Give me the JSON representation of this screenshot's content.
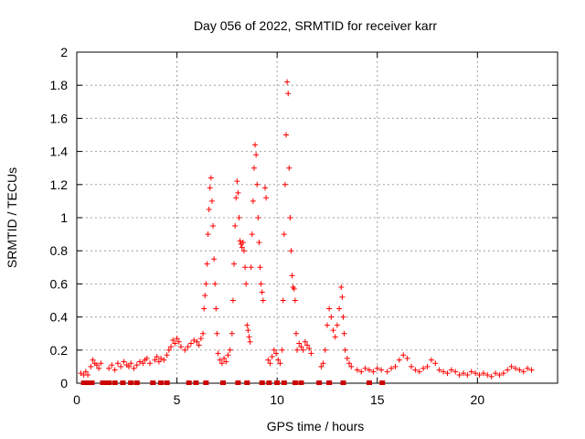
{
  "chart_data": {
    "type": "scatter",
    "title": "Day 056 of 2022, SRMTID for receiver karr",
    "xlabel": "GPS time / hours",
    "ylabel": "SRMTID / TECUs",
    "xlim": [
      0,
      24
    ],
    "ylim": [
      0,
      2
    ],
    "xticks": [
      0,
      5,
      10,
      15,
      20
    ],
    "yticks": [
      0,
      0.2,
      0.4,
      0.6,
      0.8,
      1,
      1.2,
      1.4,
      1.6,
      1.8,
      2
    ],
    "grid": true,
    "colors": {
      "points": "#ff0000",
      "zero_markers": "#cc0000",
      "grid": "#a0a0a0"
    },
    "series": [
      {
        "marker": "plus",
        "points": [
          [
            0.2,
            0.06
          ],
          [
            0.35,
            0.05
          ],
          [
            0.45,
            0.07
          ],
          [
            0.55,
            0.05
          ],
          [
            0.7,
            0.1
          ],
          [
            0.8,
            0.14
          ],
          [
            0.9,
            0.12
          ],
          [
            1.0,
            0.11
          ],
          [
            1.1,
            0.09
          ],
          [
            1.2,
            0.12
          ],
          [
            1.6,
            0.09
          ],
          [
            1.75,
            0.11
          ],
          [
            1.9,
            0.08
          ],
          [
            2.05,
            0.12
          ],
          [
            2.2,
            0.1
          ],
          [
            2.35,
            0.13
          ],
          [
            2.5,
            0.11
          ],
          [
            2.6,
            0.1
          ],
          [
            2.7,
            0.12
          ],
          [
            2.85,
            0.09
          ],
          [
            3.0,
            0.11
          ],
          [
            3.15,
            0.13
          ],
          [
            3.3,
            0.12
          ],
          [
            3.4,
            0.14
          ],
          [
            3.5,
            0.15
          ],
          [
            3.65,
            0.12
          ],
          [
            3.9,
            0.14
          ],
          [
            4.0,
            0.16
          ],
          [
            4.1,
            0.13
          ],
          [
            4.2,
            0.15
          ],
          [
            4.35,
            0.14
          ],
          [
            4.5,
            0.17
          ],
          [
            4.6,
            0.2
          ],
          [
            4.7,
            0.22
          ],
          [
            4.8,
            0.26
          ],
          [
            4.9,
            0.24
          ],
          [
            5.0,
            0.27
          ],
          [
            5.1,
            0.25
          ],
          [
            5.2,
            0.22
          ],
          [
            5.4,
            0.2
          ],
          [
            5.55,
            0.22
          ],
          [
            5.7,
            0.24
          ],
          [
            5.85,
            0.26
          ],
          [
            6.0,
            0.25
          ],
          [
            6.1,
            0.23
          ],
          [
            6.2,
            0.27
          ],
          [
            6.3,
            0.3
          ],
          [
            6.35,
            0.45
          ],
          [
            6.4,
            0.53
          ],
          [
            6.45,
            0.6
          ],
          [
            6.5,
            0.72
          ],
          [
            6.55,
            0.9
          ],
          [
            6.6,
            1.05
          ],
          [
            6.65,
            1.18
          ],
          [
            6.7,
            1.24
          ],
          [
            6.75,
            1.1
          ],
          [
            6.8,
            0.95
          ],
          [
            6.85,
            0.75
          ],
          [
            6.9,
            0.6
          ],
          [
            6.95,
            0.45
          ],
          [
            7.0,
            0.3
          ],
          [
            7.05,
            0.18
          ],
          [
            7.15,
            0.14
          ],
          [
            7.25,
            0.12
          ],
          [
            7.35,
            0.15
          ],
          [
            7.45,
            0.13
          ],
          [
            7.55,
            0.17
          ],
          [
            7.65,
            0.2
          ],
          [
            7.75,
            0.3
          ],
          [
            7.8,
            0.5
          ],
          [
            7.85,
            0.72
          ],
          [
            7.9,
            0.95
          ],
          [
            7.95,
            1.12
          ],
          [
            8.0,
            1.22
          ],
          [
            8.05,
            1.15
          ],
          [
            8.1,
            1.0
          ],
          [
            8.15,
            0.86
          ],
          [
            8.2,
            0.84
          ],
          [
            8.25,
            0.82
          ],
          [
            8.3,
            0.85
          ],
          [
            8.35,
            0.8
          ],
          [
            8.4,
            0.7
          ],
          [
            8.45,
            0.6
          ],
          [
            8.5,
            0.35
          ],
          [
            8.55,
            0.32
          ],
          [
            8.6,
            0.28
          ],
          [
            8.65,
            0.25
          ],
          [
            8.7,
            0.7
          ],
          [
            8.75,
            0.9
          ],
          [
            8.8,
            1.1
          ],
          [
            8.85,
            1.3
          ],
          [
            8.9,
            1.44
          ],
          [
            8.95,
            1.38
          ],
          [
            9.0,
            1.2
          ],
          [
            9.05,
            1.0
          ],
          [
            9.1,
            0.85
          ],
          [
            9.15,
            0.7
          ],
          [
            9.2,
            0.6
          ],
          [
            9.25,
            0.55
          ],
          [
            9.3,
            0.5
          ],
          [
            9.4,
            1.18
          ],
          [
            9.45,
            1.12
          ],
          [
            9.55,
            0.14
          ],
          [
            9.65,
            0.12
          ],
          [
            9.75,
            0.16
          ],
          [
            9.85,
            0.2
          ],
          [
            9.95,
            0.18
          ],
          [
            10.05,
            0.14
          ],
          [
            10.15,
            0.12
          ],
          [
            10.25,
            0.2
          ],
          [
            10.3,
            0.5
          ],
          [
            10.35,
            0.9
          ],
          [
            10.4,
            1.2
          ],
          [
            10.45,
            1.5
          ],
          [
            10.5,
            1.82
          ],
          [
            10.55,
            1.75
          ],
          [
            10.6,
            1.3
          ],
          [
            10.65,
            1.0
          ],
          [
            10.7,
            0.8
          ],
          [
            10.75,
            0.65
          ],
          [
            10.8,
            0.58
          ],
          [
            10.85,
            0.57
          ],
          [
            10.9,
            0.5
          ],
          [
            10.95,
            0.3
          ],
          [
            11.0,
            0.2
          ],
          [
            11.1,
            0.24
          ],
          [
            11.2,
            0.22
          ],
          [
            11.3,
            0.2
          ],
          [
            11.4,
            0.25
          ],
          [
            11.5,
            0.23
          ],
          [
            11.6,
            0.21
          ],
          [
            11.7,
            0.18
          ],
          [
            12.2,
            0.1
          ],
          [
            12.3,
            0.12
          ],
          [
            12.4,
            0.2
          ],
          [
            12.5,
            0.35
          ],
          [
            12.6,
            0.45
          ],
          [
            12.7,
            0.4
          ],
          [
            12.8,
            0.32
          ],
          [
            12.9,
            0.28
          ],
          [
            13.0,
            0.35
          ],
          [
            13.1,
            0.45
          ],
          [
            13.2,
            0.58
          ],
          [
            13.25,
            0.52
          ],
          [
            13.3,
            0.4
          ],
          [
            13.35,
            0.3
          ],
          [
            13.4,
            0.2
          ],
          [
            13.5,
            0.15
          ],
          [
            13.6,
            0.12
          ],
          [
            13.7,
            0.1
          ],
          [
            14.0,
            0.08
          ],
          [
            14.2,
            0.07
          ],
          [
            14.4,
            0.09
          ],
          [
            14.6,
            0.08
          ],
          [
            14.8,
            0.07
          ],
          [
            15.0,
            0.09
          ],
          [
            15.2,
            0.08
          ],
          [
            15.5,
            0.07
          ],
          [
            15.7,
            0.09
          ],
          [
            15.9,
            0.1
          ],
          [
            16.1,
            0.14
          ],
          [
            16.3,
            0.17
          ],
          [
            16.5,
            0.15
          ],
          [
            16.7,
            0.1
          ],
          [
            16.9,
            0.08
          ],
          [
            17.1,
            0.07
          ],
          [
            17.3,
            0.09
          ],
          [
            17.5,
            0.1
          ],
          [
            17.7,
            0.14
          ],
          [
            17.9,
            0.12
          ],
          [
            18.1,
            0.08
          ],
          [
            18.3,
            0.07
          ],
          [
            18.5,
            0.06
          ],
          [
            18.7,
            0.08
          ],
          [
            18.9,
            0.07
          ],
          [
            19.1,
            0.05
          ],
          [
            19.3,
            0.06
          ],
          [
            19.5,
            0.05
          ],
          [
            19.7,
            0.07
          ],
          [
            19.9,
            0.06
          ],
          [
            20.1,
            0.05
          ],
          [
            20.3,
            0.06
          ],
          [
            20.5,
            0.05
          ],
          [
            20.7,
            0.04
          ],
          [
            20.9,
            0.06
          ],
          [
            21.1,
            0.05
          ],
          [
            21.3,
            0.06
          ],
          [
            21.5,
            0.08
          ],
          [
            21.7,
            0.1
          ],
          [
            21.9,
            0.09
          ],
          [
            22.1,
            0.08
          ],
          [
            22.3,
            0.07
          ],
          [
            22.5,
            0.09
          ],
          [
            22.7,
            0.08
          ]
        ]
      }
    ],
    "zero_markers_x": [
      0.35,
      0.55,
      0.75,
      1.3,
      1.45,
      1.6,
      1.9,
      2.3,
      2.7,
      3.0,
      3.8,
      4.2,
      4.5,
      5.6,
      5.95,
      6.45,
      7.3,
      8.05,
      8.5,
      9.25,
      9.6,
      10.0,
      10.35,
      10.9,
      11.2,
      12.1,
      12.6,
      13.3,
      14.6,
      15.25
    ]
  }
}
